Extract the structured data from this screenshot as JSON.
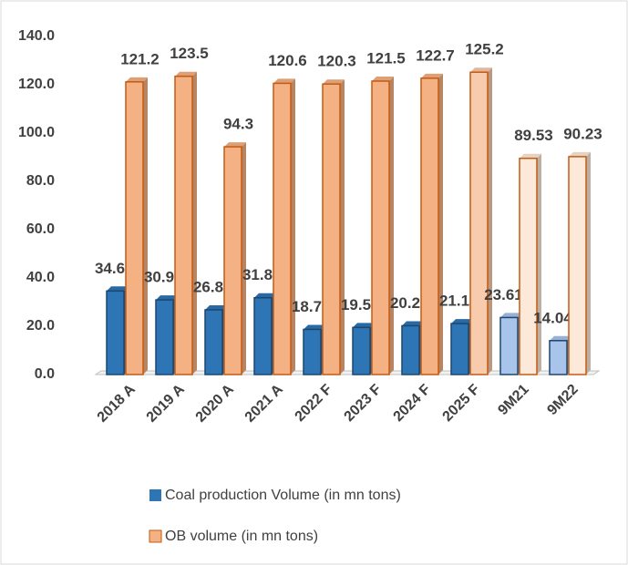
{
  "chart_data": {
    "type": "bar",
    "categories": [
      "2018 A",
      "2019 A",
      "2020 A",
      "2021 A",
      "2022 F",
      "2023 F",
      "2024 F",
      "2025 F",
      "9M21",
      "9M22"
    ],
    "series": [
      {
        "name": "Coal production Volume (in mn tons)",
        "color": "#2e75b6",
        "colors": [
          "#2e75b6",
          "#2e75b6",
          "#2e75b6",
          "#2e75b6",
          "#2e75b6",
          "#2e75b6",
          "#2e75b6",
          "#2e75b6",
          "#a9c4eb",
          "#a9c4eb"
        ],
        "values": [
          34.6,
          30.9,
          26.8,
          31.8,
          18.7,
          19.5,
          20.2,
          21.1,
          23.61,
          14.04
        ]
      },
      {
        "name": "OB volume (in mn tons)",
        "color": "#f4b183",
        "colors": [
          "#f4b183",
          "#f4b183",
          "#f4b183",
          "#f4b183",
          "#f4b183",
          "#f4b183",
          "#f4b183",
          "#f8cbad",
          "#fde9d9",
          "#fde9d9"
        ],
        "values": [
          121.2,
          123.5,
          94.3,
          120.6,
          120.3,
          121.5,
          122.7,
          125.2,
          89.53,
          90.23
        ]
      }
    ],
    "ylim": [
      0,
      140
    ],
    "yticks": [
      {
        "value": 0,
        "label": "0.0"
      },
      {
        "value": 20,
        "label": "20.0"
      },
      {
        "value": 40,
        "label": "40.0"
      },
      {
        "value": 60,
        "label": "60.0"
      },
      {
        "value": 80,
        "label": "80.0"
      },
      {
        "value": 100,
        "label": "100.0"
      },
      {
        "value": 120,
        "label": "120.0"
      },
      {
        "value": 140,
        "label": "140.0"
      }
    ],
    "legend": "bottom"
  }
}
